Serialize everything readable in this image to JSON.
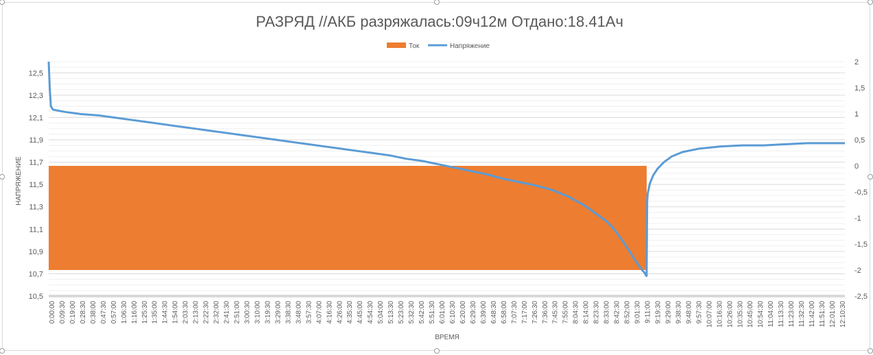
{
  "chart_data": {
    "type": "bar+line",
    "title": "РАЗРЯД //АКБ разряжалась:09ч12м   Отдано:18.41Ач",
    "xlabel": "ВРЕМЯ",
    "ylabel": "НАПРЯЖЕНИЕ",
    "legend_position": "top",
    "grid": true,
    "y_left": {
      "min": 10.5,
      "max": 12.6,
      "ticks": [
        "10,5",
        "10,7",
        "10,9",
        "11,1",
        "11,3",
        "11,5",
        "11,7",
        "11,9",
        "12,1",
        "12,3",
        "12,5"
      ]
    },
    "y_right": {
      "min": -2.5,
      "max": 2,
      "ticks": [
        "-2,5",
        "-2",
        "-1,5",
        "-1",
        "-0,5",
        "0",
        "0,5",
        "1",
        "1,5",
        "2"
      ]
    },
    "x_ticks": [
      "0:00:00",
      "0:09:30",
      "0:19:00",
      "0:28:30",
      "0:38:00",
      "0:47:30",
      "0:57:00",
      "1:06:30",
      "1:16:00",
      "1:25:30",
      "1:35:00",
      "1:44:30",
      "1:54:00",
      "2:03:30",
      "2:13:00",
      "2:22:30",
      "2:32:00",
      "2:41:30",
      "2:51:00",
      "3:00:30",
      "3:10:00",
      "3:19:30",
      "3:29:00",
      "3:38:30",
      "3:48:00",
      "3:57:30",
      "4:07:00",
      "4:16:30",
      "4:26:00",
      "4:35:30",
      "4:45:00",
      "4:54:30",
      "5:04:00",
      "5:13:30",
      "5:23:00",
      "5:32:30",
      "5:42:00",
      "5:51:30",
      "6:01:00",
      "6:10:30",
      "6:20:00",
      "6:29:30",
      "6:39:00",
      "6:48:30",
      "6:58:00",
      "7:07:30",
      "7:17:00",
      "7:26:30",
      "7:36:00",
      "7:45:30",
      "7:55:00",
      "8:04:30",
      "8:14:00",
      "8:23:30",
      "8:33:00",
      "8:42:30",
      "8:52:00",
      "9:01:30",
      "9:11:00",
      "9:19:30",
      "9:29:00",
      "9:38:30",
      "9:48:00",
      "9:57:30",
      "10:07:00",
      "10:16:30",
      "10:26:00",
      "10:35:30",
      "10:45:00",
      "10:54:30",
      "11:04:00",
      "11:13:30",
      "11:23:00",
      "11:32:30",
      "11:42:00",
      "11:51:30",
      "12:01:00",
      "12:10:30"
    ],
    "series": [
      {
        "name": "Ток",
        "axis": "right",
        "color": "#ED7D31",
        "segments": [
          {
            "x_start": "0:00:00",
            "x_end": "9:12:00",
            "value": -2.0
          },
          {
            "x_start": "9:12:00",
            "x_end": "12:15:00",
            "value": 0
          }
        ]
      },
      {
        "name": "Напряжение",
        "axis": "left",
        "color": "#5B9BD5",
        "x_min": [
          0,
          1,
          2,
          4,
          15,
          30,
          45,
          60,
          75,
          90,
          105,
          120,
          135,
          150,
          165,
          180,
          195,
          210,
          225,
          240,
          255,
          270,
          285,
          300,
          315,
          330,
          345,
          360,
          375,
          390,
          405,
          420,
          435,
          450,
          465,
          480,
          495,
          505,
          515,
          520,
          525,
          530,
          535,
          540,
          545,
          548,
          550,
          551,
          552,
          552.5,
          553,
          555,
          558,
          562,
          568,
          575,
          585,
          600,
          620,
          640,
          660,
          680,
          700,
          720,
          735
        ],
        "values": [
          12.6,
          12.35,
          12.2,
          12.17,
          12.15,
          12.13,
          12.12,
          12.1,
          12.08,
          12.06,
          12.04,
          12.02,
          12.0,
          11.98,
          11.96,
          11.94,
          11.92,
          11.9,
          11.88,
          11.86,
          11.84,
          11.82,
          11.8,
          11.78,
          11.76,
          11.73,
          11.71,
          11.68,
          11.65,
          11.62,
          11.59,
          11.55,
          11.52,
          11.49,
          11.45,
          11.39,
          11.31,
          11.24,
          11.17,
          11.12,
          11.06,
          10.99,
          10.92,
          10.84,
          10.77,
          10.73,
          10.71,
          10.69,
          10.68,
          11.35,
          11.42,
          11.51,
          11.58,
          11.64,
          11.7,
          11.75,
          11.79,
          11.82,
          11.84,
          11.85,
          11.85,
          11.86,
          11.87,
          11.87,
          11.87
        ]
      }
    ]
  }
}
